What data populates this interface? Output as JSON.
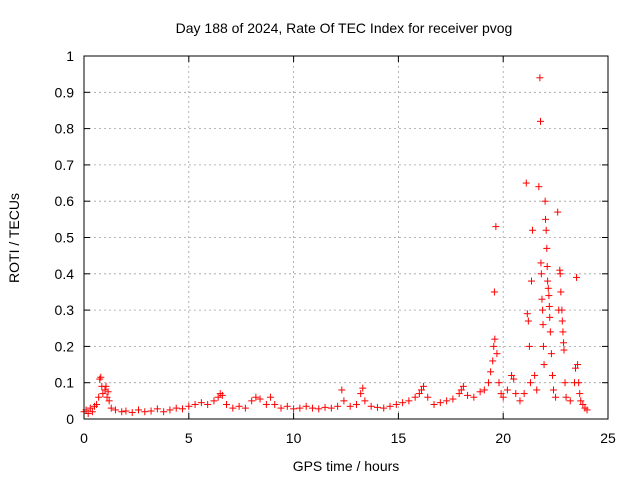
{
  "chart_data": {
    "type": "scatter",
    "title": "Day 188 of 2024, Rate Of TEC Index for receiver pvog",
    "xlabel": "GPS time / hours",
    "ylabel": "ROTI / TECUs",
    "xlim": [
      0,
      25
    ],
    "ylim": [
      0,
      1
    ],
    "x_ticks": [
      "0",
      "5",
      "10",
      "15",
      "20",
      "25"
    ],
    "y_ticks": [
      "0",
      "0.1",
      "0.2",
      "0.3",
      "0.4",
      "0.5",
      "0.6",
      "0.7",
      "0.8",
      "0.9",
      "1"
    ],
    "grid": true,
    "marker": "+",
    "color": "#ff0000",
    "series": [
      {
        "points": [
          [
            0.0,
            0.02
          ],
          [
            0.1,
            0.025
          ],
          [
            0.2,
            0.015
          ],
          [
            0.3,
            0.03
          ],
          [
            0.4,
            0.02
          ],
          [
            0.5,
            0.035
          ],
          [
            0.6,
            0.04
          ],
          [
            0.7,
            0.06
          ],
          [
            0.75,
            0.11
          ],
          [
            0.8,
            0.115
          ],
          [
            0.85,
            0.09
          ],
          [
            0.9,
            0.07
          ],
          [
            1.0,
            0.08
          ],
          [
            1.05,
            0.09
          ],
          [
            1.1,
            0.06
          ],
          [
            1.15,
            0.075
          ],
          [
            1.2,
            0.05
          ],
          [
            1.3,
            0.03
          ],
          [
            1.5,
            0.025
          ],
          [
            1.8,
            0.02
          ],
          [
            2.0,
            0.022
          ],
          [
            2.3,
            0.018
          ],
          [
            2.6,
            0.025
          ],
          [
            2.9,
            0.02
          ],
          [
            3.2,
            0.022
          ],
          [
            3.5,
            0.028
          ],
          [
            3.8,
            0.02
          ],
          [
            4.1,
            0.025
          ],
          [
            4.4,
            0.03
          ],
          [
            4.7,
            0.028
          ],
          [
            5.0,
            0.035
          ],
          [
            5.3,
            0.04
          ],
          [
            5.6,
            0.045
          ],
          [
            5.9,
            0.04
          ],
          [
            6.2,
            0.05
          ],
          [
            6.4,
            0.06
          ],
          [
            6.5,
            0.07
          ],
          [
            6.6,
            0.065
          ],
          [
            6.8,
            0.04
          ],
          [
            7.1,
            0.03
          ],
          [
            7.4,
            0.035
          ],
          [
            7.7,
            0.03
          ],
          [
            8.0,
            0.05
          ],
          [
            8.2,
            0.06
          ],
          [
            8.4,
            0.055
          ],
          [
            8.7,
            0.04
          ],
          [
            8.9,
            0.06
          ],
          [
            9.1,
            0.04
          ],
          [
            9.4,
            0.03
          ],
          [
            9.7,
            0.035
          ],
          [
            10.0,
            0.028
          ],
          [
            10.3,
            0.03
          ],
          [
            10.6,
            0.035
          ],
          [
            10.9,
            0.03
          ],
          [
            11.2,
            0.028
          ],
          [
            11.5,
            0.032
          ],
          [
            11.8,
            0.03
          ],
          [
            12.1,
            0.035
          ],
          [
            12.3,
            0.08
          ],
          [
            12.4,
            0.05
          ],
          [
            12.7,
            0.035
          ],
          [
            13.0,
            0.04
          ],
          [
            13.2,
            0.07
          ],
          [
            13.3,
            0.085
          ],
          [
            13.4,
            0.05
          ],
          [
            13.7,
            0.035
          ],
          [
            14.0,
            0.032
          ],
          [
            14.3,
            0.03
          ],
          [
            14.6,
            0.035
          ],
          [
            14.9,
            0.04
          ],
          [
            15.2,
            0.045
          ],
          [
            15.5,
            0.05
          ],
          [
            15.8,
            0.06
          ],
          [
            16.0,
            0.07
          ],
          [
            16.1,
            0.08
          ],
          [
            16.2,
            0.09
          ],
          [
            16.4,
            0.06
          ],
          [
            16.7,
            0.04
          ],
          [
            17.0,
            0.045
          ],
          [
            17.3,
            0.05
          ],
          [
            17.6,
            0.055
          ],
          [
            17.9,
            0.07
          ],
          [
            18.0,
            0.08
          ],
          [
            18.1,
            0.09
          ],
          [
            18.3,
            0.065
          ],
          [
            18.6,
            0.06
          ],
          [
            18.9,
            0.075
          ],
          [
            19.1,
            0.08
          ],
          [
            19.3,
            0.1
          ],
          [
            19.4,
            0.13
          ],
          [
            19.5,
            0.16
          ],
          [
            19.55,
            0.2
          ],
          [
            19.6,
            0.22
          ],
          [
            19.58,
            0.35
          ],
          [
            19.65,
            0.53
          ],
          [
            19.7,
            0.18
          ],
          [
            19.8,
            0.1
          ],
          [
            19.9,
            0.07
          ],
          [
            20.0,
            0.06
          ],
          [
            20.2,
            0.08
          ],
          [
            20.4,
            0.12
          ],
          [
            20.5,
            0.11
          ],
          [
            20.6,
            0.07
          ],
          [
            20.8,
            0.05
          ],
          [
            21.0,
            0.07
          ],
          [
            21.1,
            0.65
          ],
          [
            21.15,
            0.29
          ],
          [
            21.2,
            0.27
          ],
          [
            21.25,
            0.2
          ],
          [
            21.3,
            0.1
          ],
          [
            21.35,
            0.38
          ],
          [
            21.4,
            0.52
          ],
          [
            21.5,
            0.12
          ],
          [
            21.6,
            0.08
          ],
          [
            21.7,
            0.64
          ],
          [
            21.75,
            0.94
          ],
          [
            21.78,
            0.82
          ],
          [
            21.8,
            0.43
          ],
          [
            21.82,
            0.4
          ],
          [
            21.85,
            0.33
          ],
          [
            21.88,
            0.3
          ],
          [
            21.9,
            0.26
          ],
          [
            21.92,
            0.2
          ],
          [
            21.95,
            0.15
          ],
          [
            22.0,
            0.6
          ],
          [
            22.02,
            0.55
          ],
          [
            22.05,
            0.52
          ],
          [
            22.08,
            0.47
          ],
          [
            22.1,
            0.42
          ],
          [
            22.12,
            0.38
          ],
          [
            22.15,
            0.36
          ],
          [
            22.18,
            0.34
          ],
          [
            22.2,
            0.31
          ],
          [
            22.22,
            0.28
          ],
          [
            22.25,
            0.24
          ],
          [
            22.3,
            0.18
          ],
          [
            22.35,
            0.12
          ],
          [
            22.4,
            0.08
          ],
          [
            22.5,
            0.06
          ],
          [
            22.6,
            0.57
          ],
          [
            22.65,
            0.3
          ],
          [
            22.7,
            0.41
          ],
          [
            22.72,
            0.4
          ],
          [
            22.75,
            0.35
          ],
          [
            22.8,
            0.3
          ],
          [
            22.82,
            0.27
          ],
          [
            22.85,
            0.24
          ],
          [
            22.88,
            0.21
          ],
          [
            22.9,
            0.19
          ],
          [
            22.95,
            0.1
          ],
          [
            23.0,
            0.06
          ],
          [
            23.2,
            0.05
          ],
          [
            23.4,
            0.1
          ],
          [
            23.45,
            0.14
          ],
          [
            23.5,
            0.39
          ],
          [
            23.55,
            0.15
          ],
          [
            23.6,
            0.1
          ],
          [
            23.65,
            0.07
          ],
          [
            23.7,
            0.05
          ],
          [
            23.8,
            0.04
          ],
          [
            23.9,
            0.03
          ],
          [
            24.0,
            0.025
          ]
        ]
      }
    ]
  }
}
